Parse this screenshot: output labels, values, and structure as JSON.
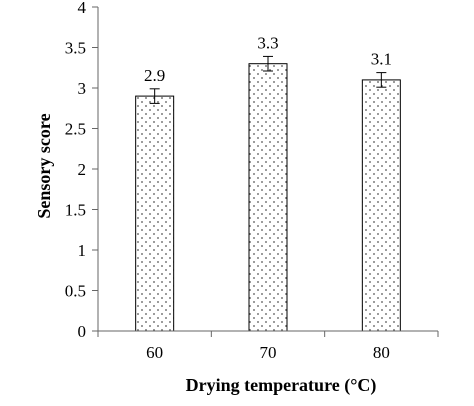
{
  "chart_data": {
    "type": "bar",
    "title": "",
    "xlabel": "Drying temperature (°C)",
    "ylabel": "Sensory score",
    "categories": [
      "60",
      "70",
      "80"
    ],
    "values": [
      2.9,
      3.3,
      3.1
    ],
    "data_labels": [
      "2.9",
      "3.3",
      "3.1"
    ],
    "error": [
      0.09,
      0.09,
      0.09
    ],
    "ylim": [
      0,
      4
    ],
    "yticks": [
      "0",
      "0.5",
      "1",
      "1.5",
      "2",
      "2.5",
      "3",
      "3.5",
      "4"
    ],
    "grid": false,
    "legend": "none",
    "bar_fill": "dotted",
    "colors": {
      "bar_stroke": "#000000",
      "dot": "#555555",
      "axis": "#666666"
    }
  }
}
